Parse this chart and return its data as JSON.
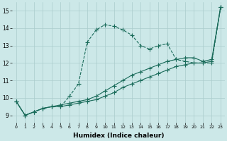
{
  "xlabel": "Humidex (Indice chaleur)",
  "xlim": [
    -0.5,
    23.5
  ],
  "ylim": [
    8.6,
    15.5
  ],
  "yticks": [
    9,
    10,
    11,
    12,
    13,
    14,
    15
  ],
  "xticks": [
    0,
    1,
    2,
    3,
    4,
    5,
    6,
    7,
    8,
    9,
    10,
    11,
    12,
    13,
    14,
    15,
    16,
    17,
    18,
    19,
    20,
    21,
    22,
    23
  ],
  "bg_color": "#cce8e8",
  "grid_color": "#aacccc",
  "line_color": "#1a6b5a",
  "line1_x": [
    0,
    1,
    2,
    3,
    4,
    5,
    6,
    7,
    8,
    9,
    10,
    11,
    12,
    13,
    14,
    15,
    16,
    17,
    18,
    19,
    20,
    21,
    22,
    23
  ],
  "line1_y": [
    9.8,
    9.0,
    9.2,
    9.4,
    9.5,
    9.5,
    10.1,
    10.8,
    13.2,
    13.9,
    14.2,
    14.1,
    13.9,
    13.6,
    13.0,
    12.8,
    13.0,
    13.1,
    12.2,
    12.1,
    12.0,
    12.0,
    12.0,
    15.2
  ],
  "line2_x": [
    0,
    1,
    2,
    3,
    4,
    5,
    6,
    7,
    8,
    9,
    10,
    11,
    12,
    13,
    14,
    15,
    16,
    17,
    18,
    19,
    20,
    21,
    22,
    23
  ],
  "line2_y": [
    9.8,
    9.0,
    9.2,
    9.4,
    9.5,
    9.6,
    9.7,
    9.8,
    9.9,
    10.1,
    10.4,
    10.7,
    11.0,
    11.3,
    11.5,
    11.7,
    11.9,
    12.1,
    12.2,
    12.3,
    12.3,
    12.1,
    12.2,
    15.2
  ],
  "line3_x": [
    0,
    1,
    2,
    3,
    4,
    5,
    6,
    7,
    8,
    9,
    10,
    11,
    12,
    13,
    14,
    15,
    16,
    17,
    18,
    19,
    20,
    21,
    22,
    23
  ],
  "line3_y": [
    9.8,
    9.0,
    9.2,
    9.4,
    9.5,
    9.5,
    9.6,
    9.7,
    9.8,
    9.9,
    10.1,
    10.3,
    10.6,
    10.8,
    11.0,
    11.2,
    11.4,
    11.6,
    11.8,
    11.9,
    12.0,
    12.0,
    12.1,
    15.2
  ]
}
